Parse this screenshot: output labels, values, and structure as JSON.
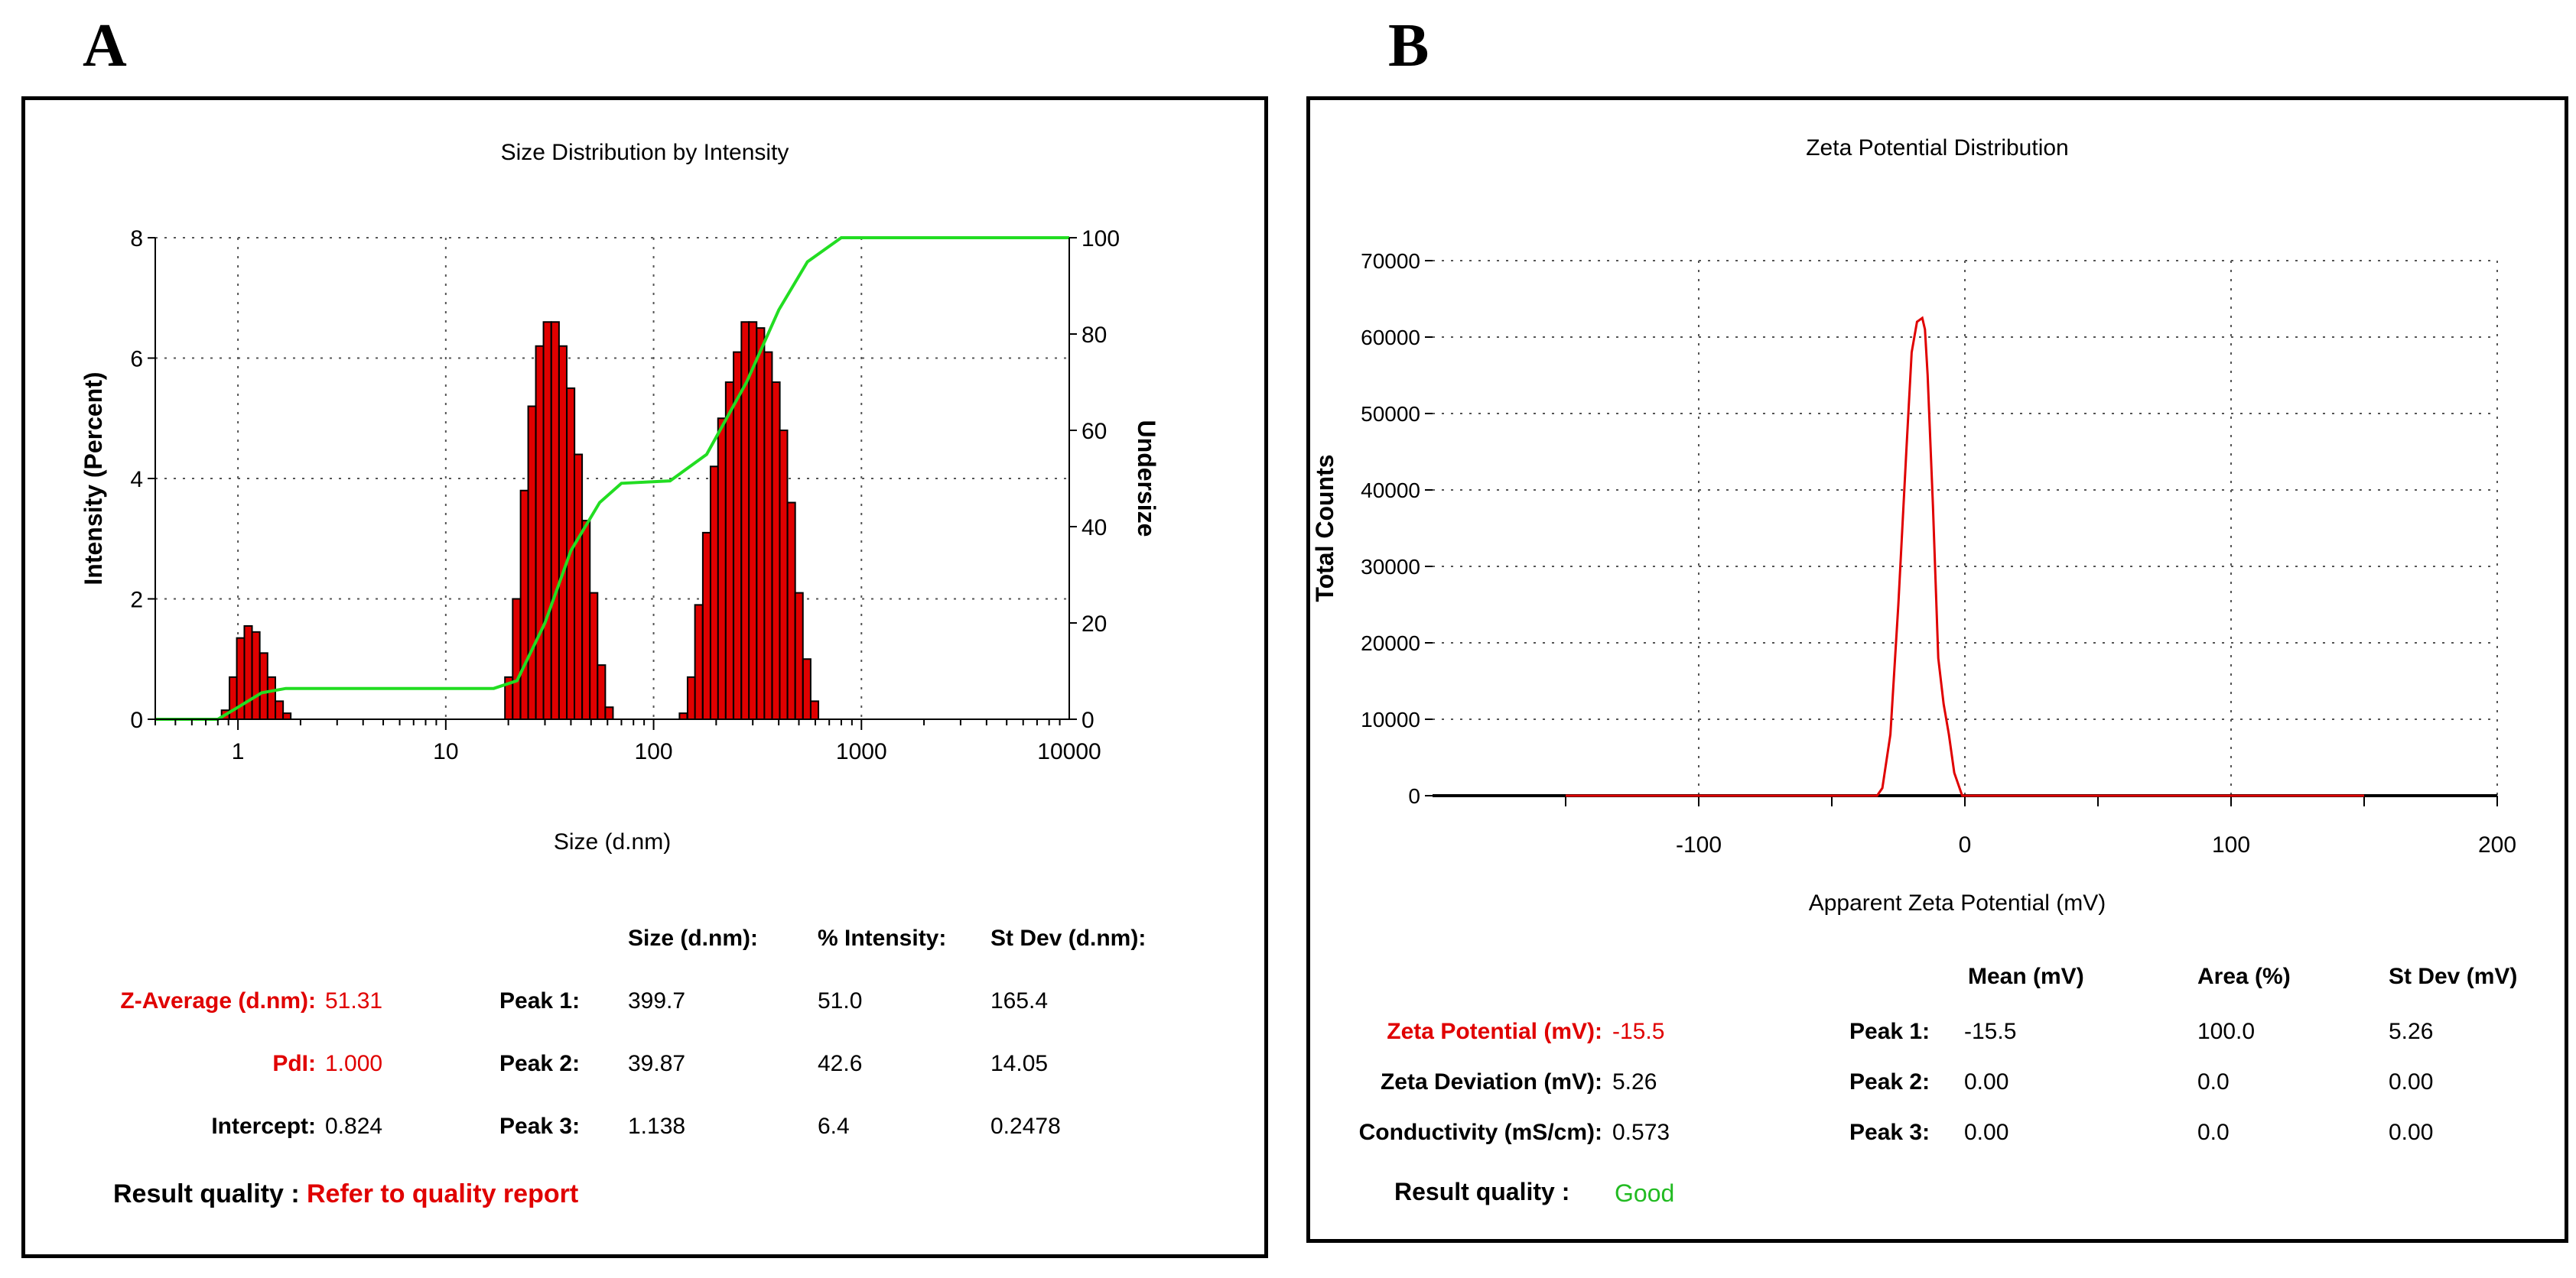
{
  "panel_a": {
    "letter": "A",
    "chart_data": {
      "type": "bar",
      "title": "Size Distribution by Intensity",
      "xlabel": "Size (d.nm)",
      "ylabel": "Intensity (Percent)",
      "ylabel_right": "Undersize",
      "x_scale": "log",
      "xlim": [
        0.4,
        10000
      ],
      "ylim": [
        0,
        8
      ],
      "ylim_right": [
        0,
        100
      ],
      "x_ticks": [
        "1",
        "10",
        "100",
        "1000",
        "10000"
      ],
      "y_ticks": [
        "0",
        "2",
        "4",
        "6",
        "8"
      ],
      "y_ticks_right": [
        "0",
        "20",
        "40",
        "60",
        "80",
        "100"
      ],
      "grid": true,
      "bar_color": "#e00000",
      "curve_color": "#22dd22",
      "bars": [
        {
          "size": 0.87,
          "intensity": 0.15
        },
        {
          "size": 0.95,
          "intensity": 0.7
        },
        {
          "size": 1.03,
          "intensity": 1.35
        },
        {
          "size": 1.12,
          "intensity": 1.55
        },
        {
          "size": 1.22,
          "intensity": 1.45
        },
        {
          "size": 1.33,
          "intensity": 1.1
        },
        {
          "size": 1.45,
          "intensity": 0.7
        },
        {
          "size": 1.58,
          "intensity": 0.3
        },
        {
          "size": 1.72,
          "intensity": 0.1
        },
        {
          "size": 20.1,
          "intensity": 0.7
        },
        {
          "size": 21.9,
          "intensity": 2.0
        },
        {
          "size": 23.9,
          "intensity": 3.8
        },
        {
          "size": 26.0,
          "intensity": 5.2
        },
        {
          "size": 28.3,
          "intensity": 6.2
        },
        {
          "size": 30.8,
          "intensity": 6.6
        },
        {
          "size": 33.6,
          "intensity": 6.6
        },
        {
          "size": 36.6,
          "intensity": 6.2
        },
        {
          "size": 39.9,
          "intensity": 5.5
        },
        {
          "size": 43.4,
          "intensity": 4.4
        },
        {
          "size": 47.3,
          "intensity": 3.3
        },
        {
          "size": 51.5,
          "intensity": 2.1
        },
        {
          "size": 56.1,
          "intensity": 0.9
        },
        {
          "size": 61.1,
          "intensity": 0.2
        },
        {
          "size": 139,
          "intensity": 0.1
        },
        {
          "size": 152,
          "intensity": 0.7
        },
        {
          "size": 165,
          "intensity": 1.9
        },
        {
          "size": 180,
          "intensity": 3.1
        },
        {
          "size": 196,
          "intensity": 4.2
        },
        {
          "size": 213,
          "intensity": 5.0
        },
        {
          "size": 232,
          "intensity": 5.6
        },
        {
          "size": 253,
          "intensity": 6.1
        },
        {
          "size": 276,
          "intensity": 6.6
        },
        {
          "size": 300,
          "intensity": 6.6
        },
        {
          "size": 327,
          "intensity": 6.5
        },
        {
          "size": 356,
          "intensity": 6.1
        },
        {
          "size": 388,
          "intensity": 5.6
        },
        {
          "size": 422,
          "intensity": 4.8
        },
        {
          "size": 460,
          "intensity": 3.6
        },
        {
          "size": 501,
          "intensity": 2.1
        },
        {
          "size": 546,
          "intensity": 1.0
        },
        {
          "size": 595,
          "intensity": 0.3
        }
      ],
      "undersize_curve": [
        [
          0.4,
          0
        ],
        [
          0.8,
          0
        ],
        [
          1.0,
          2.5
        ],
        [
          1.3,
          5.5
        ],
        [
          1.7,
          6.4
        ],
        [
          17,
          6.4
        ],
        [
          22,
          8
        ],
        [
          30,
          20
        ],
        [
          40,
          35
        ],
        [
          55,
          45
        ],
        [
          70,
          49
        ],
        [
          120,
          49.5
        ],
        [
          180,
          55
        ],
        [
          280,
          70
        ],
        [
          400,
          85
        ],
        [
          550,
          95
        ],
        [
          800,
          100
        ],
        [
          10000,
          100
        ]
      ]
    },
    "results": {
      "headers": [
        "Size (d.nm):",
        "% Intensity:",
        "St Dev (d.nm):"
      ],
      "rows": [
        {
          "label": "Z-Average (d.nm):",
          "value": "51.31",
          "peak": "Peak 1:",
          "size": "399.7",
          "intensity": "51.0",
          "stdev": "165.4"
        },
        {
          "label": "PdI:",
          "value": "1.000",
          "peak": "Peak 2:",
          "size": "39.87",
          "intensity": "42.6",
          "stdev": "14.05"
        },
        {
          "label": "Intercept:",
          "value": "0.824",
          "peak": "Peak 3:",
          "size": "1.138",
          "intensity": "6.4",
          "stdev": "0.2478"
        }
      ],
      "quality_label": "Result quality :",
      "quality_value": "Refer to quality report"
    }
  },
  "panel_b": {
    "letter": "B",
    "chart_data": {
      "type": "line",
      "title": "Zeta Potential Distribution",
      "xlabel": "Apparent Zeta Potential (mV)",
      "ylabel": "Total Counts",
      "xlim": [
        -200,
        200
      ],
      "ylim": [
        0,
        70000
      ],
      "x_ticks": [
        "-100",
        "0",
        "100",
        "200"
      ],
      "y_ticks": [
        "0",
        "10000",
        "20000",
        "30000",
        "40000",
        "50000",
        "60000",
        "70000"
      ],
      "grid": true,
      "line_color": "#e00000",
      "series": [
        {
          "x": [
            -150,
            -33,
            -31,
            -28,
            -25,
            -22,
            -20,
            -18,
            -16,
            -15,
            -14,
            -12,
            -10,
            -8,
            -6,
            -4,
            -1,
            150
          ],
          "y": [
            0,
            0,
            1000,
            8000,
            25000,
            45000,
            58000,
            62000,
            62500,
            61000,
            55000,
            38000,
            18000,
            12000,
            8000,
            3000,
            0,
            0
          ]
        }
      ]
    },
    "results": {
      "headers": [
        "Mean (mV)",
        "Area (%)",
        "St Dev (mV)"
      ],
      "rows": [
        {
          "label": "Zeta Potential (mV):",
          "value": "-15.5",
          "peak": "Peak 1:",
          "mean": "-15.5",
          "area": "100.0",
          "stdev": "5.26"
        },
        {
          "label": "Zeta Deviation (mV):",
          "value": "5.26",
          "peak": "Peak 2:",
          "mean": "0.00",
          "area": "0.0",
          "stdev": "0.00"
        },
        {
          "label": "Conductivity (mS/cm):",
          "value": "0.573",
          "peak": "Peak 3:",
          "mean": "0.00",
          "area": "0.0",
          "stdev": "0.00"
        }
      ],
      "quality_label": "Result quality :",
      "quality_value": "Good"
    }
  }
}
